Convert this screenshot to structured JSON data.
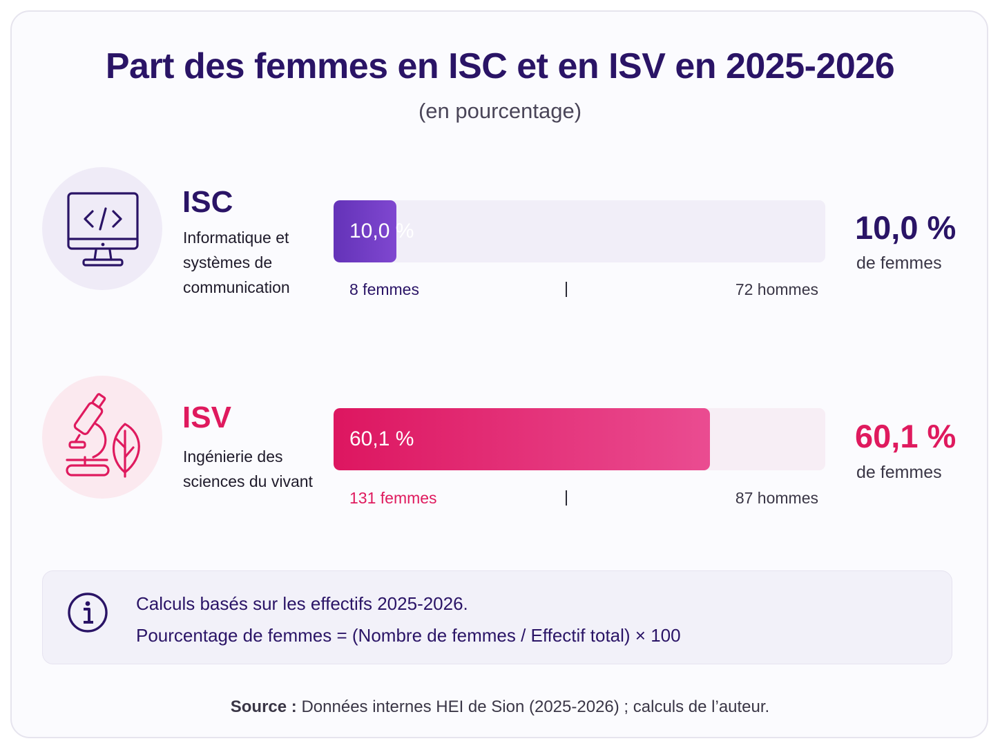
{
  "title": "Part des femmes en ISC et en ISV en 2025-2026",
  "subtitle": "(en pourcentage)",
  "colors": {
    "isc_accent": "#2a1466",
    "isc_bar": "#6a38c0",
    "isv_accent": "#df1a5e",
    "isv_bar": "#e2286c"
  },
  "programs": [
    {
      "code": "ISC",
      "description": "Informatique et\nsystèmes de\ncommunication",
      "icon": "computer-code-icon",
      "bar_label": "10,0 %",
      "women_label": "8 femmes",
      "men_label": "72 hommes",
      "big_value": "10,0 %",
      "big_sub": "de femmes"
    },
    {
      "code": "ISV",
      "description": "Ingénierie des\nsciences du vivant",
      "icon": "microscope-leaf-icon",
      "bar_label": "60,1 %",
      "women_label": "131 femmes",
      "men_label": "87 hommes",
      "big_value": "60,1 %",
      "big_sub": "de femmes"
    }
  ],
  "note": {
    "icon": "info-icon",
    "line1": "Calculs basés sur les effectifs 2025-2026.",
    "line2": "Pourcentage de femmes = (Nombre de femmes / Effectif total) × 100"
  },
  "source": {
    "label": "Source :",
    "text": " Données internes HEI de Sion (2025-2026) ; calculs de l’auteur."
  },
  "chart_data": {
    "type": "bar",
    "orientation": "horizontal",
    "title": "Part des femmes en ISC et en ISV en 2025-2026",
    "subtitle": "(en pourcentage)",
    "categories": [
      "ISC",
      "ISV"
    ],
    "values": [
      10.0,
      60.1
    ],
    "women": [
      8,
      131
    ],
    "men": [
      72,
      87
    ],
    "xlim": [
      0,
      100
    ],
    "grid": false
  }
}
